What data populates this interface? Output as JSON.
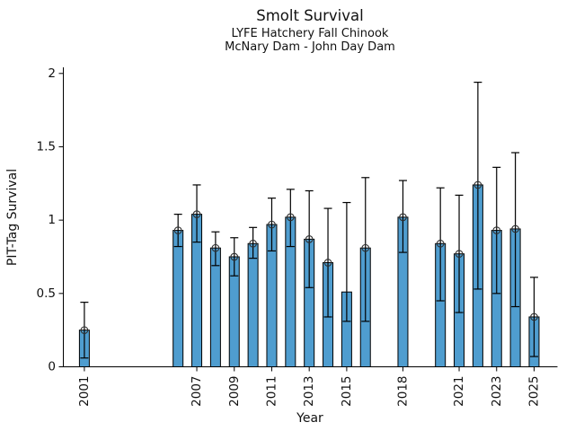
{
  "chart_data": {
    "type": "bar",
    "title": "Smolt Survival",
    "subtitle_line1": "LYFE Hatchery Fall Chinook",
    "subtitle_line2": "McNary Dam - John Day Dam",
    "xlabel": "Year",
    "ylabel": "PIT-Tag Survival",
    "ylim": [
      0,
      2.04
    ],
    "xlim": [
      1999.9,
      2026.2
    ],
    "yticks": [
      "0",
      "0.5",
      "1",
      "1.5",
      "2"
    ],
    "xticks": [
      2001,
      2007,
      2009,
      2011,
      2013,
      2015,
      2018,
      2021,
      2023,
      2025
    ],
    "grid": false,
    "legend": null,
    "bar_color": "#4f9dcf",
    "bar_edge_color": "#000000",
    "error_bar_color": "#000000",
    "marker_style": "open-circle",
    "series": [
      {
        "year": 2001,
        "value": 0.25,
        "ci_low": 0.06,
        "ci_high": 0.44,
        "marker": true
      },
      {
        "year": 2006,
        "value": 0.93,
        "ci_low": 0.82,
        "ci_high": 1.04,
        "marker": true
      },
      {
        "year": 2007,
        "value": 1.04,
        "ci_low": 0.85,
        "ci_high": 1.24,
        "marker": true
      },
      {
        "year": 2008,
        "value": 0.81,
        "ci_low": 0.69,
        "ci_high": 0.92,
        "marker": true
      },
      {
        "year": 2009,
        "value": 0.75,
        "ci_low": 0.62,
        "ci_high": 0.88,
        "marker": true
      },
      {
        "year": 2010,
        "value": 0.84,
        "ci_low": 0.74,
        "ci_high": 0.95,
        "marker": true
      },
      {
        "year": 2011,
        "value": 0.97,
        "ci_low": 0.79,
        "ci_high": 1.15,
        "marker": true
      },
      {
        "year": 2012,
        "value": 1.02,
        "ci_low": 0.82,
        "ci_high": 1.21,
        "marker": true
      },
      {
        "year": 2013,
        "value": 0.87,
        "ci_low": 0.54,
        "ci_high": 1.2,
        "marker": true
      },
      {
        "year": 2014,
        "value": 0.71,
        "ci_low": 0.34,
        "ci_high": 1.08,
        "marker": true
      },
      {
        "year": 2015,
        "value": 0.51,
        "ci_low": 0.31,
        "ci_high": 1.12,
        "marker": false
      },
      {
        "year": 2016,
        "value": 0.81,
        "ci_low": 0.31,
        "ci_high": 1.29,
        "marker": true
      },
      {
        "year": 2018,
        "value": 1.02,
        "ci_low": 0.78,
        "ci_high": 1.27,
        "marker": true
      },
      {
        "year": 2020,
        "value": 0.84,
        "ci_low": 0.45,
        "ci_high": 1.22,
        "marker": true
      },
      {
        "year": 2021,
        "value": 0.77,
        "ci_low": 0.37,
        "ci_high": 1.17,
        "marker": true
      },
      {
        "year": 2022,
        "value": 1.24,
        "ci_low": 0.53,
        "ci_high": 1.94,
        "marker": true
      },
      {
        "year": 2023,
        "value": 0.93,
        "ci_low": 0.5,
        "ci_high": 1.36,
        "marker": true
      },
      {
        "year": 2024,
        "value": 0.94,
        "ci_low": 0.41,
        "ci_high": 1.46,
        "marker": true
      },
      {
        "year": 2025,
        "value": 0.34,
        "ci_low": 0.07,
        "ci_high": 0.61,
        "marker": true
      }
    ]
  }
}
